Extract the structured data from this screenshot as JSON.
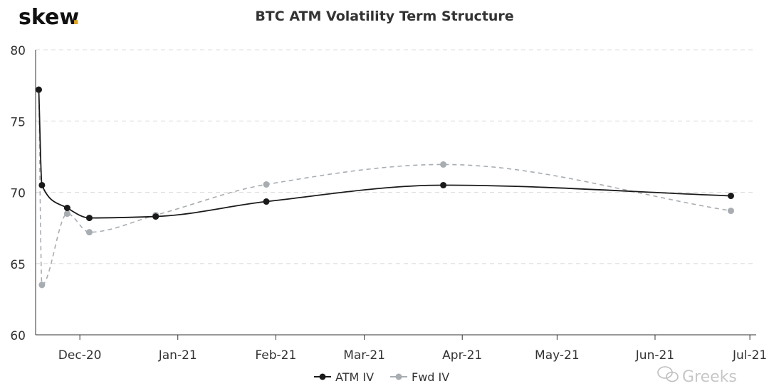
{
  "brand": {
    "name": "skew",
    "dot": ".",
    "dot_color": "#e0a526"
  },
  "watermark": {
    "text": "Greeks"
  },
  "colors": {
    "atm": "#1a1a1a",
    "fwd": "#a8adb2",
    "grid": "#dddddd",
    "axis": "#333333"
  },
  "chart_data": {
    "type": "line",
    "title": "BTC ATM Volatility Term Structure",
    "xlabel": "",
    "ylabel": "",
    "ylim": [
      60,
      80
    ],
    "yticks": [
      60,
      65,
      70,
      75,
      80
    ],
    "x_tick_labels": [
      "Dec-20",
      "Jan-21",
      "Feb-21",
      "Mar-21",
      "Apr-21",
      "May-21",
      "Jun-21",
      "Jul-21"
    ],
    "x_tick_dates": [
      "2020-12-01",
      "2021-01-01",
      "2021-02-01",
      "2021-03-01",
      "2021-04-01",
      "2021-05-01",
      "2021-06-01",
      "2021-07-01"
    ],
    "xlim": [
      "2020-11-17",
      "2021-07-03"
    ],
    "grid": true,
    "legend_position": "bottom-center",
    "series": [
      {
        "name": "ATM IV",
        "style": "solid",
        "color_key": "atm",
        "x": [
          "2020-11-18",
          "2020-11-19",
          "2020-11-27",
          "2020-12-04",
          "2020-12-25",
          "2021-01-29",
          "2021-03-26",
          "2021-06-25"
        ],
        "y": [
          77.2,
          70.5,
          68.9,
          68.2,
          68.3,
          69.35,
          70.5,
          69.75
        ]
      },
      {
        "name": "Fwd IV",
        "style": "dashed",
        "color_key": "fwd",
        "x": [
          "2020-11-18",
          "2020-11-19",
          "2020-11-27",
          "2020-12-04",
          "2020-12-25",
          "2021-01-29",
          "2021-03-26",
          "2021-06-25"
        ],
        "y": [
          77.2,
          63.5,
          68.5,
          67.2,
          68.4,
          70.55,
          71.95,
          68.7
        ]
      }
    ]
  }
}
